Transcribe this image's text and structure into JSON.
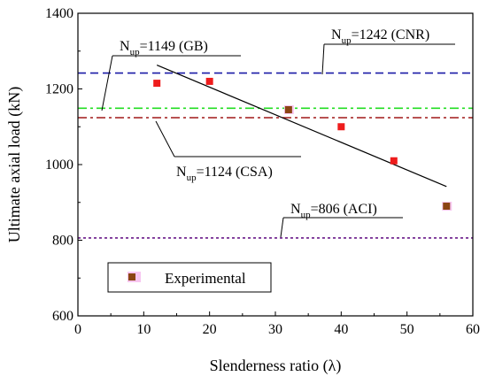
{
  "chart_data": {
    "type": "scatter",
    "xlabel": "Slenderness ratio (λ)",
    "ylabel": "Ultimate axial load (kN)",
    "xlim": [
      0,
      60
    ],
    "ylim": [
      600,
      1400
    ],
    "xticks": [
      0,
      10,
      20,
      30,
      40,
      50,
      60
    ],
    "yticks": [
      600,
      800,
      1000,
      1200,
      1400
    ],
    "grid": false,
    "legend": {
      "placement": "bottom-left",
      "entries": [
        "Experimental"
      ]
    },
    "series": [
      {
        "name": "Experimental",
        "marker": "square",
        "colors": [
          "#ee1c1c",
          "#ee1c1c",
          "#8b4513",
          "#ee1c1c",
          "#ee1c1c",
          "#8b4513"
        ],
        "points": [
          {
            "x": 12,
            "y": 1215
          },
          {
            "x": 20,
            "y": 1220
          },
          {
            "x": 32,
            "y": 1145
          },
          {
            "x": 40,
            "y": 1100
          },
          {
            "x": 48,
            "y": 1010
          },
          {
            "x": 56,
            "y": 890
          }
        ]
      }
    ],
    "trend_line": {
      "color": "#000000",
      "from": {
        "x": 12,
        "y": 1263
      },
      "to": {
        "x": 56,
        "y": 942
      }
    },
    "reference_lines": [
      {
        "y": 1242,
        "color": "#1a1aa6",
        "style": "dashed",
        "label_main": "N",
        "label_sub": "up",
        "label_rest": "=1242 (CNR)"
      },
      {
        "y": 1149,
        "color": "#22dd22",
        "style": "dashdot",
        "label_main": "N",
        "label_sub": "up",
        "label_rest": "=1149 (GB)"
      },
      {
        "y": 1124,
        "color": "#a01818",
        "style": "dashdot",
        "label_main": "N",
        "label_sub": "up",
        "label_rest": "=1124 (CSA)"
      },
      {
        "y": 806,
        "color": "#6a1a8a",
        "style": "dotted",
        "label_main": "N",
        "label_sub": "up",
        "label_rest": "=806 (ACI)"
      }
    ]
  }
}
